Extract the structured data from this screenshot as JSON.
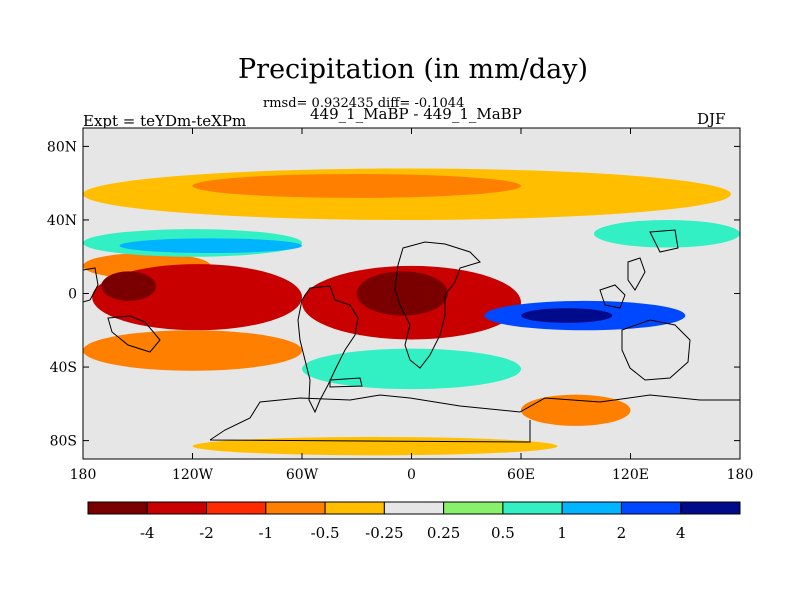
{
  "chart_data": {
    "type": "heatmap",
    "title": "Precipitation (in mm/day)",
    "stats_text": "rmsd= 0.932435 diff= -0.1044",
    "subtitle": "449_1_MaBP - 449_1_MaBP",
    "left_label": "Expt = teYDm-teXPm",
    "right_label": "DJF",
    "x_range": [
      -180,
      180
    ],
    "y_range": [
      -90,
      90
    ],
    "x_ticks": [
      {
        "value": -180,
        "label": "180"
      },
      {
        "value": -120,
        "label": "120W"
      },
      {
        "value": -60,
        "label": "60W"
      },
      {
        "value": 0,
        "label": "0"
      },
      {
        "value": 60,
        "label": "60E"
      },
      {
        "value": 120,
        "label": "120E"
      },
      {
        "value": 180,
        "label": "180"
      }
    ],
    "y_ticks": [
      {
        "value": 80,
        "label": "80N"
      },
      {
        "value": 40,
        "label": "40N"
      },
      {
        "value": 0,
        "label": "0"
      },
      {
        "value": -40,
        "label": "40S"
      },
      {
        "value": -80,
        "label": "80S"
      }
    ],
    "colorbar": {
      "colors": [
        "#7a0000",
        "#c80000",
        "#ff2a00",
        "#ff7f00",
        "#ffbf00",
        "#e6e6e6",
        "#88f06a",
        "#33f0c4",
        "#00b4ff",
        "#0048ff",
        "#000b8c"
      ],
      "labels": [
        "-4",
        "-2",
        "-1",
        "-0.5",
        "-0.25",
        "0.25",
        "0.5",
        "1",
        "2",
        "4"
      ]
    },
    "regions": [
      {
        "name": "arctic-orange-band",
        "level": -0.25,
        "lon": [
          -180,
          175
        ],
        "lat": [
          40,
          68
        ]
      },
      {
        "name": "arctic-orange-core",
        "level": -0.5,
        "lon": [
          -120,
          60
        ],
        "lat": [
          52,
          65
        ]
      },
      {
        "name": "north-pacific-deficit",
        "level": -0.5,
        "lon": [
          -180,
          -110
        ],
        "lat": [
          8,
          22
        ]
      },
      {
        "name": "central-pacific-deficit",
        "level": -2,
        "lon": [
          -175,
          -60
        ],
        "lat": [
          -20,
          16
        ]
      },
      {
        "name": "pacific-deficit-core",
        "level": -4,
        "lon": [
          -170,
          -140
        ],
        "lat": [
          -4,
          12
        ]
      },
      {
        "name": "tropical-atlantic-deficit",
        "level": -2,
        "lon": [
          -60,
          60
        ],
        "lat": [
          -25,
          15
        ]
      },
      {
        "name": "tropical-atlantic-core",
        "level": -4,
        "lon": [
          -30,
          20
        ],
        "lat": [
          -12,
          12
        ]
      },
      {
        "name": "mid-latitude-surplus-band",
        "level": 0.5,
        "lon": [
          -180,
          -60
        ],
        "lat": [
          20,
          35
        ]
      },
      {
        "name": "north-subtropical-surplus",
        "level": 1,
        "lon": [
          -160,
          -60
        ],
        "lat": [
          22,
          30
        ]
      },
      {
        "name": "east-asia-surplus",
        "level": 0.5,
        "lon": [
          100,
          180
        ],
        "lat": [
          25,
          40
        ]
      },
      {
        "name": "indian-ocean-surplus",
        "level": 2,
        "lon": [
          40,
          150
        ],
        "lat": [
          -20,
          -4
        ]
      },
      {
        "name": "indian-ocean-core",
        "level": 4,
        "lon": [
          60,
          110
        ],
        "lat": [
          -16,
          -8
        ]
      },
      {
        "name": "southern-pacific-deficit",
        "level": -0.5,
        "lon": [
          -180,
          -60
        ],
        "lat": [
          -42,
          -20
        ]
      },
      {
        "name": "southern-surplus-band",
        "level": 0.5,
        "lon": [
          -60,
          60
        ],
        "lat": [
          -52,
          -30
        ]
      },
      {
        "name": "southern-ocean-deficit",
        "level": -0.5,
        "lon": [
          60,
          120
        ],
        "lat": [
          -72,
          -55
        ]
      },
      {
        "name": "antarctic-deficit",
        "level": -0.25,
        "lon": [
          -120,
          80
        ],
        "lat": [
          -88,
          -78
        ]
      }
    ]
  }
}
